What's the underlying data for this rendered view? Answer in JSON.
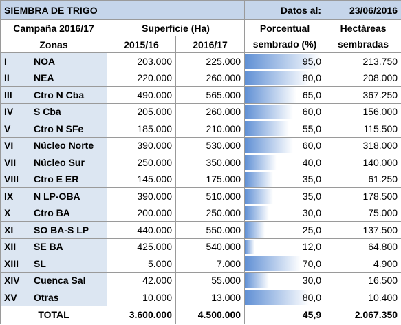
{
  "header": {
    "title": "SIEMBRA DE TRIGO",
    "date_label": "Datos al:",
    "date": "23/06/2016"
  },
  "table": {
    "columns": {
      "campaign": "Campaña 2016/17",
      "surface": "Superficie (Ha)",
      "percent_1": "Porcentual",
      "hectares_1": "Hectáreas",
      "zones": "Zonas",
      "year_1": "2015/16",
      "year_2": "2016/17",
      "percent_2": "sembrado (%)",
      "hectares_2": "sembradas"
    },
    "rows": [
      [
        "I",
        "NOA",
        "203.000",
        "225.000",
        "95,0",
        "213.750"
      ],
      [
        "II",
        "NEA",
        "220.000",
        "260.000",
        "80,0",
        "208.000"
      ],
      [
        "III",
        "Ctro N Cba",
        "490.000",
        "565.000",
        "65,0",
        "367.250"
      ],
      [
        "IV",
        "S Cba",
        "205.000",
        "260.000",
        "60,0",
        "156.000"
      ],
      [
        "V",
        "Ctro N SFe",
        "185.000",
        "210.000",
        "55,0",
        "115.500"
      ],
      [
        "VI",
        "Núcleo Norte",
        "390.000",
        "530.000",
        "60,0",
        "318.000"
      ],
      [
        "VII",
        "Núcleo Sur",
        "250.000",
        "350.000",
        "40,0",
        "140.000"
      ],
      [
        "VIII",
        "Ctro E ER",
        "145.000",
        "175.000",
        "35,0",
        "61.250"
      ],
      [
        "IX",
        "N LP-OBA",
        "390.000",
        "510.000",
        "35,0",
        "178.500"
      ],
      [
        "X",
        "Ctro BA",
        "200.000",
        "250.000",
        "30,0",
        "75.000"
      ],
      [
        "XI",
        "SO BA-S LP",
        "440.000",
        "550.000",
        "25,0",
        "137.500"
      ],
      [
        "XII",
        "SE BA",
        "425.000",
        "540.000",
        "12,0",
        "64.800"
      ],
      [
        "XIII",
        "SL",
        "5.000",
        "7.000",
        "70,0",
        "4.900"
      ],
      [
        "XIV",
        "Cuenca Sal",
        "42.000",
        "55.000",
        "30,0",
        "16.500"
      ],
      [
        "XV",
        "Otras",
        "10.000",
        "13.000",
        "80,0",
        "10.400"
      ]
    ],
    "total": [
      "TOTAL",
      "3.600.000",
      "4.500.000",
      "45,9",
      "2.067.350"
    ]
  }
}
